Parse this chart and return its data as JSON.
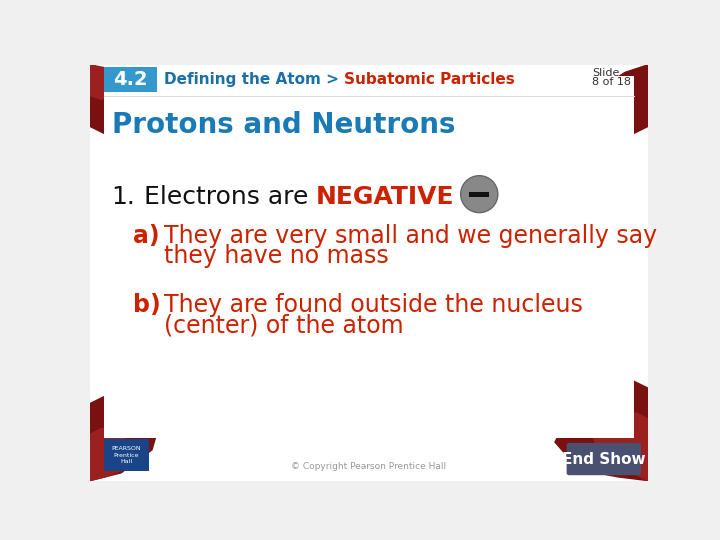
{
  "bg_color": "#f0f0f0",
  "header_bar_color": "#3399cc",
  "header_number": "4.2",
  "header_number_color": "#ffffff",
  "header_text_prefix": "Defining the Atom > ",
  "header_text_bold": "Subatomic Particles",
  "header_text_color": "#1a6fa8",
  "header_text_bold_color": "#cc2200",
  "section_title": "Protons and Neutrons",
  "section_title_color": "#1a7ab5",
  "item1_num": "1.",
  "item1_text_regular": " Electrons are ",
  "item1_text_bold": "NEGATIVE",
  "item1_bold_color": "#cc2200",
  "item1_text_color": "#111111",
  "item_a_label": "a)",
  "item_a_line1": "They are very small and we generally say",
  "item_a_line2": "they have no mass",
  "item_b_label": "b)",
  "item_b_line1": "They are found outside the nucleus",
  "item_b_line2": "(center) of the atom",
  "item_ab_color": "#cc2200",
  "circle_color": "#888888",
  "circle_edge_color": "#666666",
  "minus_color": "#111111",
  "slide_label": "Slide",
  "slide_num": "8 of 18",
  "slide_text_color": "#333333",
  "endshow_bg": "#4a5070",
  "endshow_text": "End Show",
  "endshow_text_color": "#ffffff",
  "copyright_text": "© Copyright Pearson Prentice Hall",
  "corner_dark": "#7a1010",
  "corner_mid": "#9b2020",
  "pearson_bg": "#1a4488",
  "pearson_text": "PEARSON\nPrentice\nHall"
}
